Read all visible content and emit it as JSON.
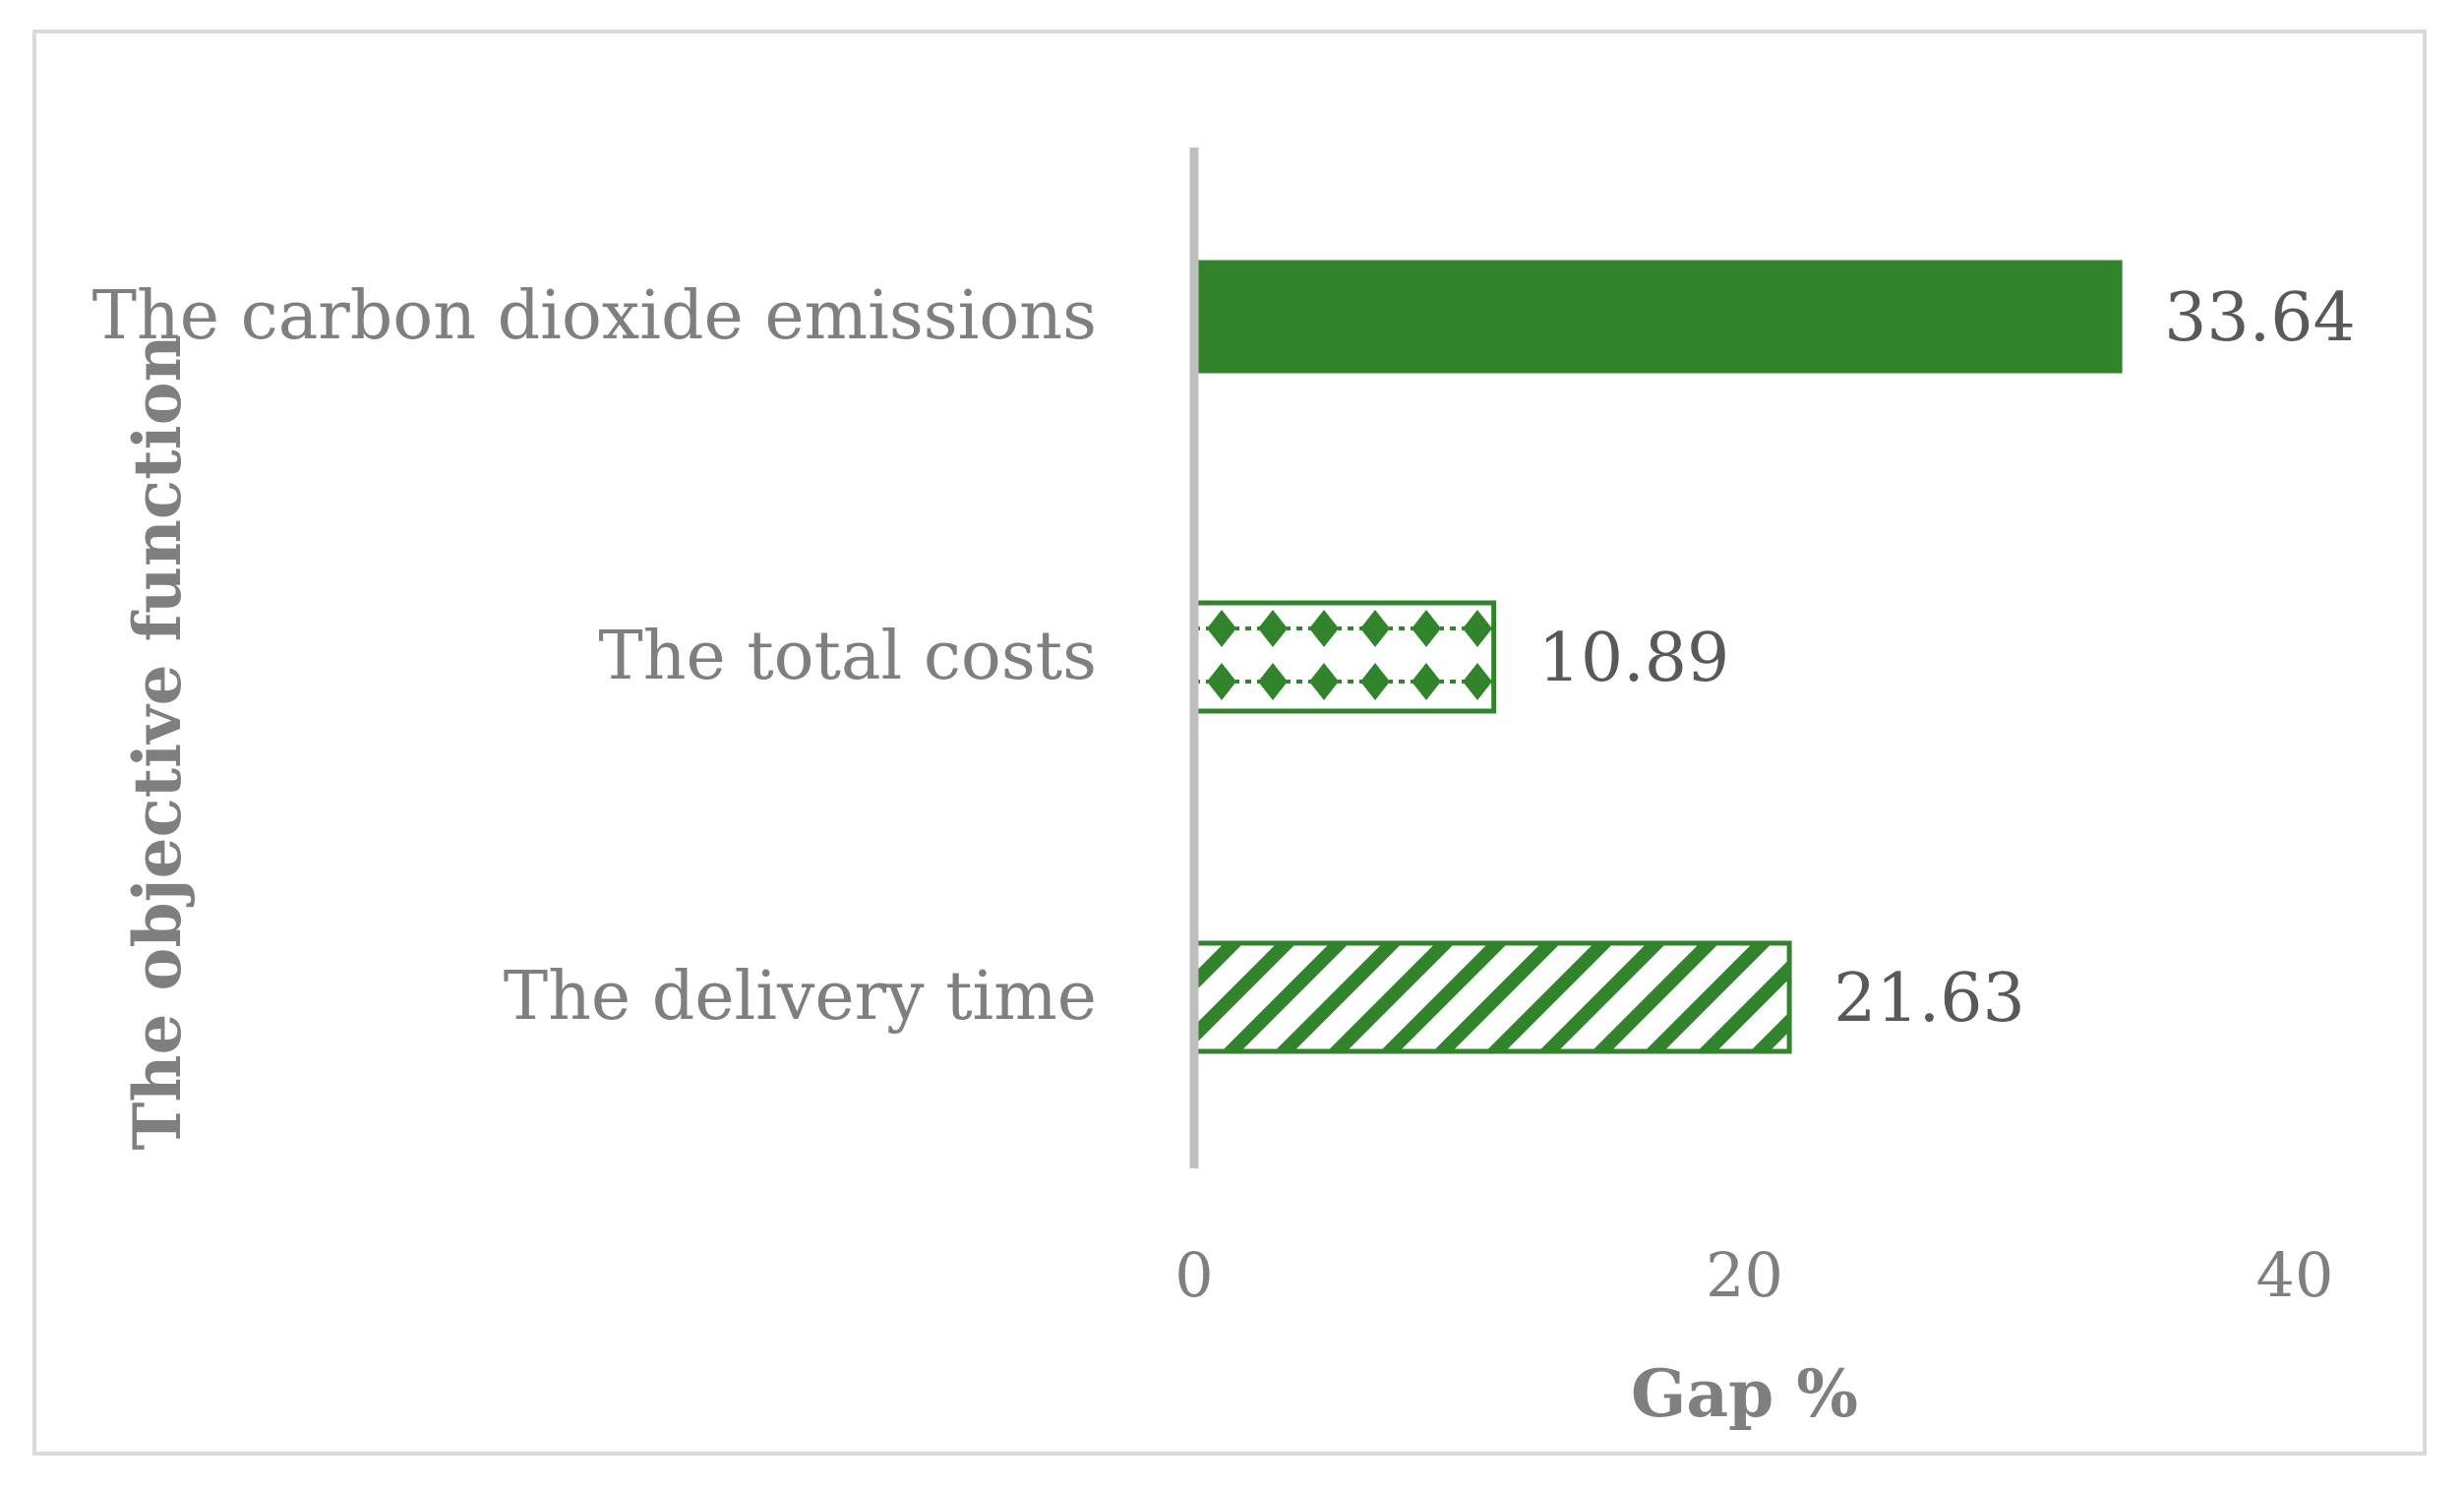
{
  "chart_data": {
    "type": "bar",
    "orientation": "horizontal",
    "categories": [
      "The carbon dioxide emissions",
      "The total costs",
      "The delivery time"
    ],
    "values": [
      33.64,
      10.89,
      21.63
    ],
    "data_labels": [
      "33.64",
      "10.89",
      "21.63"
    ],
    "fills": [
      "solid",
      "diamond-pattern",
      "diagonal-stripes"
    ],
    "bar_color": "#31832c",
    "xlabel": "Gap %",
    "ylabel": "The objective function",
    "xlim": [
      0,
      40
    ],
    "x_ticks": [
      "0",
      "20",
      "40"
    ],
    "grid": false,
    "legend": "none"
  },
  "colors": {
    "bar": "#31832c",
    "axis_line": "#bfbfbf",
    "label_text": "#7f7f7f",
    "value_text": "#595959",
    "frame": "#d9d9d9"
  }
}
